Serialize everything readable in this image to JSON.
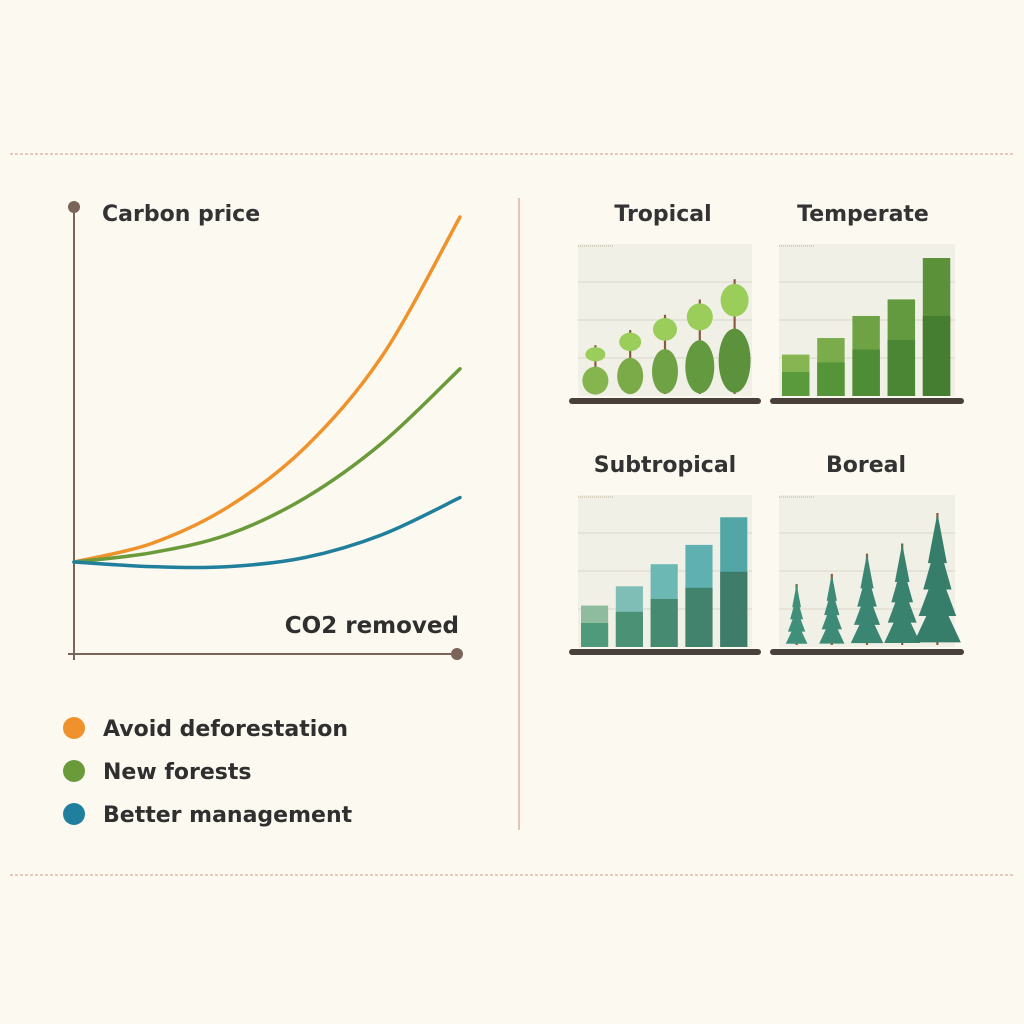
{
  "chart_data": [
    {
      "type": "line",
      "ylabel": "Carbon price",
      "xlabel": "CO2 removed",
      "xlim": [
        0,
        100
      ],
      "ylim": [
        0,
        100
      ],
      "series": [
        {
          "name": "Avoid deforestation",
          "color": "#f0922b",
          "x": [
            0,
            20,
            40,
            60,
            80,
            100
          ],
          "values": [
            20,
            24,
            32,
            45,
            65,
            95
          ]
        },
        {
          "name": "New forests",
          "color": "#6a9a3a",
          "x": [
            0,
            20,
            40,
            60,
            80,
            100
          ],
          "values": [
            20,
            22,
            26,
            34,
            46,
            62
          ]
        },
        {
          "name": "Better management",
          "color": "#1f7f9c",
          "x": [
            0,
            20,
            40,
            60,
            80,
            100
          ],
          "values": [
            20,
            19,
            19,
            21,
            26,
            34
          ]
        }
      ]
    },
    {
      "type": "bar",
      "title": "Tropical",
      "style": "trees",
      "palette": "light-green",
      "values": [
        20,
        26,
        32,
        38,
        46
      ]
    },
    {
      "type": "bar",
      "title": "Temperate",
      "style": "bars",
      "palette": "green",
      "values": [
        30,
        42,
        58,
        70,
        100
      ]
    },
    {
      "type": "bar",
      "title": "Subtropical",
      "style": "bars",
      "palette": "teal",
      "values": [
        30,
        44,
        60,
        74,
        94
      ]
    },
    {
      "type": "bar",
      "title": "Boreal",
      "style": "trees",
      "palette": "teal",
      "values": [
        24,
        28,
        36,
        40,
        52
      ]
    }
  ]
}
